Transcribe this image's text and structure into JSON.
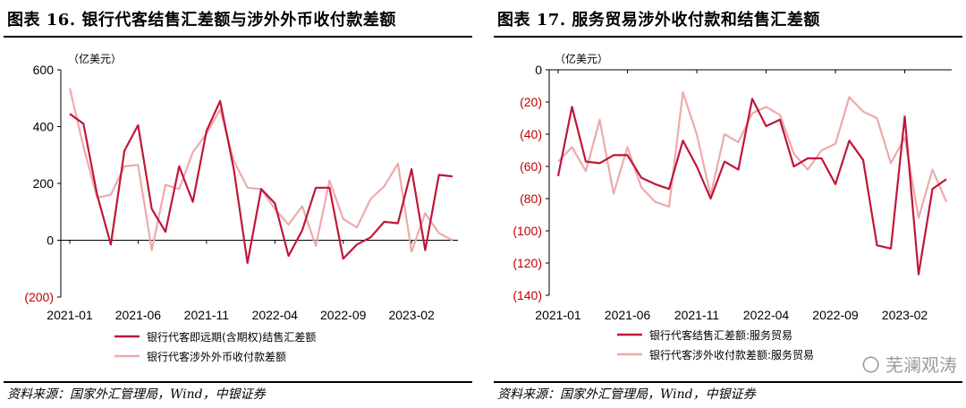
{
  "left": {
    "title": "图表 16.  银行代客结售汇差额与涉外外币收付款差额",
    "source": "资料来源：国家外汇管理局，Wind，中银证券",
    "unit": "（亿美元）",
    "legend": [
      "银行代客即远期(含期权)结售汇差额",
      "银行代客涉外外币收付款差额"
    ]
  },
  "right": {
    "title": "图表 17.  服务贸易涉外收付款和结售汇差额",
    "source": "资料来源：国家外汇管理局，Wind，中银证券",
    "unit": "（亿美元）",
    "legend": [
      "银行代客结售汇差额:服务贸易",
      "银行代客涉外收付款差额:服务贸易"
    ]
  },
  "watermark": "〇 芜澜观涛",
  "colors": {
    "dark": "#c0163a",
    "light": "#eeaaaa"
  },
  "chart_data": [
    {
      "type": "line",
      "x": [
        "2021-01",
        "2021-02",
        "2021-03",
        "2021-04",
        "2021-05",
        "2021-06",
        "2021-07",
        "2021-08",
        "2021-09",
        "2021-10",
        "2021-11",
        "2021-12",
        "2022-01",
        "2022-02",
        "2022-03",
        "2022-04",
        "2022-05",
        "2022-06",
        "2022-07",
        "2022-08",
        "2022-09",
        "2022-10",
        "2022-11",
        "2022-12",
        "2023-01",
        "2023-02",
        "2023-03",
        "2023-04",
        "2023-05"
      ],
      "xticks": [
        "2021-01",
        "2021-06",
        "2021-11",
        "2022-04",
        "2022-09",
        "2023-02"
      ],
      "ylim": [
        -200,
        600
      ],
      "yticks": [
        600,
        400,
        200,
        0,
        -200
      ],
      "ytick_labels": [
        "600",
        "400",
        "200",
        "0",
        "(200)"
      ],
      "series": [
        {
          "name": "银行代客即远期(含期权)结售汇差额",
          "color": "#c0163a",
          "values": [
            445,
            410,
            160,
            -15,
            315,
            405,
            110,
            30,
            260,
            135,
            385,
            490,
            250,
            -80,
            180,
            130,
            -55,
            35,
            185,
            185,
            -65,
            -15,
            10,
            65,
            60,
            250,
            -35,
            230,
            225
          ]
        },
        {
          "name": "银行代客涉外外币收付款差额",
          "color": "#eeaaaa",
          "values": [
            535,
            330,
            150,
            160,
            260,
            265,
            -35,
            195,
            180,
            310,
            375,
            460,
            280,
            185,
            180,
            110,
            55,
            120,
            -20,
            210,
            75,
            45,
            145,
            190,
            270,
            -40,
            95,
            25,
            0
          ]
        }
      ]
    },
    {
      "type": "line",
      "x": [
        "2021-01",
        "2021-02",
        "2021-03",
        "2021-04",
        "2021-05",
        "2021-06",
        "2021-07",
        "2021-08",
        "2021-09",
        "2021-10",
        "2021-11",
        "2021-12",
        "2022-01",
        "2022-02",
        "2022-03",
        "2022-04",
        "2022-05",
        "2022-06",
        "2022-07",
        "2022-08",
        "2022-09",
        "2022-10",
        "2022-11",
        "2022-12",
        "2023-01",
        "2023-02",
        "2023-03",
        "2023-04",
        "2023-05"
      ],
      "xticks": [
        "2021-01",
        "2021-06",
        "2021-11",
        "2022-04",
        "2022-09",
        "2023-02"
      ],
      "ylim": [
        -140,
        0
      ],
      "yticks": [
        0,
        -20,
        -40,
        -60,
        -80,
        -100,
        -120,
        -140
      ],
      "ytick_labels": [
        "0",
        "(20)",
        "(40)",
        "(60)",
        "(80)",
        "(100)",
        "(120)",
        "(140)"
      ],
      "series": [
        {
          "name": "银行代客结售汇差额:服务贸易",
          "color": "#c0163a",
          "values": [
            -66,
            -23,
            -57,
            -58,
            -53,
            -53,
            -67,
            -71,
            -74,
            -44,
            -60,
            -80,
            -57,
            -62,
            -18,
            -35,
            -31,
            -60,
            -55,
            -55,
            -71,
            -44,
            -56,
            -109,
            -111,
            -29,
            -127,
            -74,
            -68
          ]
        },
        {
          "name": "银行代客涉外收付款差额:服务贸易",
          "color": "#eeaaaa",
          "values": [
            -57,
            -48,
            -63,
            -31,
            -77,
            -48,
            -73,
            -82,
            -85,
            -14,
            -40,
            -78,
            -40,
            -45,
            -27,
            -23,
            -28,
            -52,
            -62,
            -50,
            -46,
            -17,
            -26,
            -30,
            -58,
            -42,
            -92,
            -62,
            -82
          ]
        }
      ]
    }
  ]
}
